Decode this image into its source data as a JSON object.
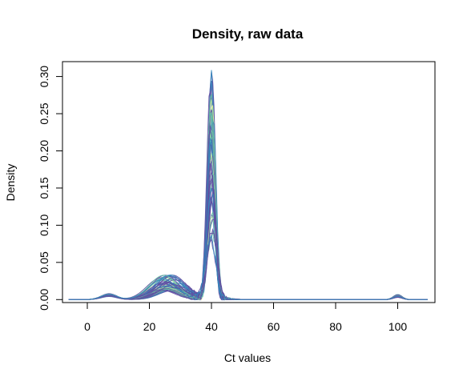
{
  "chart_data": {
    "type": "line",
    "title": "Density, raw data",
    "xlabel": "Ct values",
    "ylabel": "Density",
    "xlim": [
      -8,
      112
    ],
    "ylim": [
      -0.004,
      0.32
    ],
    "x_ticks": [
      "0",
      "20",
      "40",
      "60",
      "80",
      "100"
    ],
    "y_ticks": [
      "0.00",
      "0.05",
      "0.10",
      "0.15",
      "0.20",
      "0.25",
      "0.30"
    ],
    "grid": false,
    "legend": "none",
    "x_range": [
      -6,
      110
    ],
    "series_count": 48,
    "peaks": {
      "small_low": {
        "center": 7,
        "height_range": [
          0.004,
          0.008
        ]
      },
      "broad": {
        "center": 26,
        "height_range": [
          0.012,
          0.034
        ]
      },
      "main": {
        "center": 40,
        "height_range": [
          0.075,
          0.31
        ]
      },
      "small_high": {
        "center": 100,
        "height_range": [
          0.003,
          0.007
        ]
      }
    },
    "colors": [
      "#9E0142",
      "#D53E4F",
      "#F46D43",
      "#FDAE61",
      "#FEE08B",
      "#E6F598",
      "#ABDDA4",
      "#66C2A5",
      "#3288BD",
      "#5E4FA2"
    ]
  }
}
